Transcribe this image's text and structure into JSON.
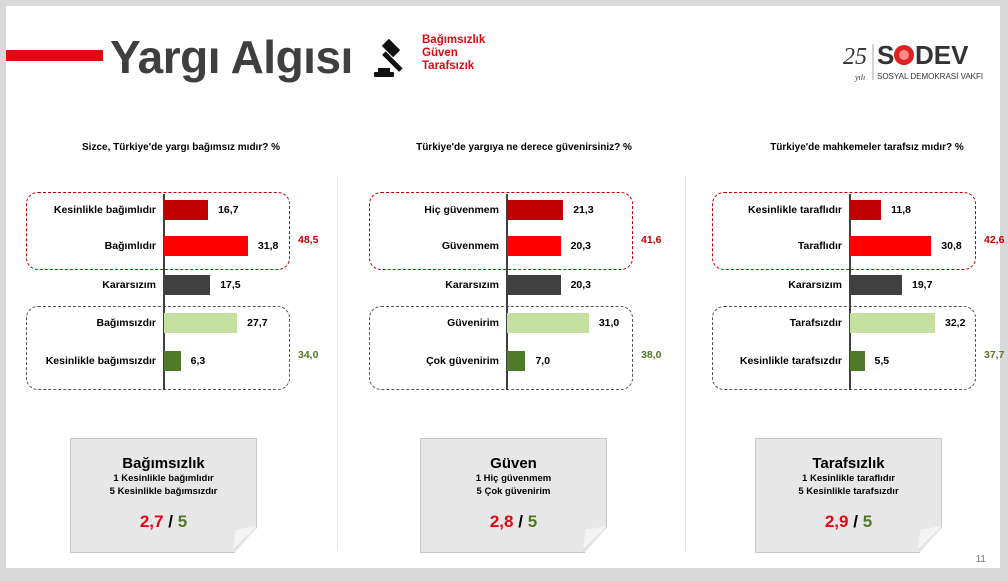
{
  "header": {
    "title": "Yargı Algısı",
    "subtitle_lines": [
      "Bağımsızlık",
      "Güven",
      "Tarafsızık"
    ],
    "logo_text": "25 yılı SODEV SOSYAL DEMOKRASİ VAKFI"
  },
  "page_number": "11",
  "colors": {
    "dark_red": "#c00000",
    "red": "#ff0000",
    "gray": "#404040",
    "light_green": "#c5e0a0",
    "dark_green": "#4f7a28",
    "accent": "#e30613"
  },
  "chart_data": [
    {
      "type": "bar",
      "orientation": "horizontal",
      "title": "Sizce, Türkiye'de yargı bağımsız mıdır? %",
      "categories": [
        "Kesinlikle bağımlıdır",
        "Bağımlıdır",
        "Kararsızım",
        "Bağımsızdır",
        "Kesinlikle bağımsızdır"
      ],
      "values": [
        16.7,
        31.8,
        17.5,
        27.7,
        6.3
      ],
      "labels": [
        "16,7",
        "31,8",
        "17,5",
        "27,7",
        "6,3"
      ],
      "group_totals": {
        "negative": "48,5",
        "positive": "34,0"
      }
    },
    {
      "type": "bar",
      "orientation": "horizontal",
      "title": "Türkiye'de yargıya ne derece güvenirsiniz? %",
      "categories": [
        "Hiç güvenmem",
        "Güvenmem",
        "Kararsızım",
        "Güvenirim",
        "Çok güvenirim"
      ],
      "values": [
        21.3,
        20.3,
        20.3,
        31.0,
        7.0
      ],
      "labels": [
        "21,3",
        "20,3",
        "20,3",
        "31,0",
        "7,0"
      ],
      "group_totals": {
        "negative": "41,6",
        "positive": "38,0"
      }
    },
    {
      "type": "bar",
      "orientation": "horizontal",
      "title": "Türkiye'de mahkemeler tarafsız mıdır? %",
      "categories": [
        "Kesinlikle taraflıdır",
        "Taraflıdır",
        "Kararsızım",
        "Tarafsızdır",
        "Kesinlikle tarafsızdır"
      ],
      "values": [
        11.8,
        30.8,
        19.7,
        32.2,
        5.5
      ],
      "labels": [
        "11,8",
        "30,8",
        "19,7",
        "32,2",
        "5,5"
      ],
      "group_totals": {
        "negative": "42,6",
        "positive": "37,7"
      }
    }
  ],
  "cards": [
    {
      "heading": "Bağımsızlık",
      "line1": "1 Kesinlikle bağımlıdır",
      "line2": "5 Kesinlikle bağımsızdır",
      "score": "2,7",
      "sep": "/",
      "max": "5"
    },
    {
      "heading": "Güven",
      "line1": "1 Hiç güvenmem",
      "line2": "5 Çok güvenirim",
      "score": "2,8",
      "sep": "/",
      "max": "5"
    },
    {
      "heading": "Tarafsızlık",
      "line1": "1 Kesinlikle taraflıdır",
      "line2": "5 Kesinlikle tarafsızdır",
      "score": "2,9",
      "sep": "/",
      "max": "5"
    }
  ]
}
